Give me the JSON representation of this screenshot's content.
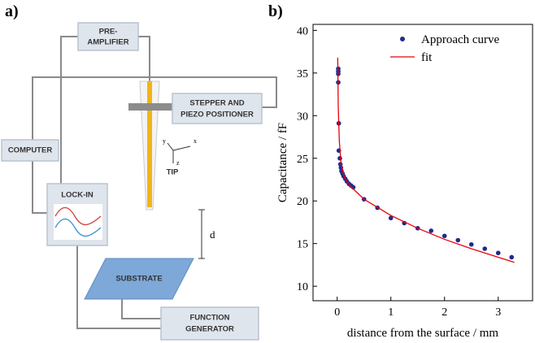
{
  "panel_a": {
    "label": "a)",
    "preamplifier": [
      "PRE-",
      "AMPLIFIER"
    ],
    "positioner": [
      "STEPPER AND",
      "PIEZO POSITIONER"
    ],
    "computer": "COMPUTER",
    "lockin": "LOCK-IN",
    "substrate": "SUBSTRATE",
    "generator": [
      "FUNCTION",
      "GENERATOR"
    ],
    "tip": "TIP",
    "distance": "d",
    "axes": [
      "x",
      "y",
      "z"
    ]
  },
  "panel_b": {
    "label": "b)"
  },
  "chart_data": {
    "type": "scatter",
    "x_label": "distance from the surface / mm",
    "y_label": "Capacitance / fF",
    "xlim": [
      -0.45,
      3.64
    ],
    "ylim": [
      8.3,
      40.7
    ],
    "xticks": [
      0,
      1,
      2,
      3
    ],
    "yticks": [
      10,
      15,
      20,
      25,
      30,
      35,
      40
    ],
    "legend": "upper right",
    "series": [
      {
        "name": "Approach curve",
        "type": "scatter",
        "color": "#1f2a8c",
        "x": [
          0.02,
          0.02,
          0.02,
          0.02,
          0.03,
          0.03,
          0.05,
          0.06,
          0.07,
          0.08,
          0.1,
          0.12,
          0.15,
          0.18,
          0.22,
          0.26,
          0.3,
          0.5,
          0.75,
          1.0,
          1.25,
          1.5,
          1.75,
          2.0,
          2.25,
          2.5,
          2.75,
          3.0,
          3.25
        ],
        "values": [
          35.5,
          35.2,
          34.9,
          33.9,
          29.1,
          25.9,
          25.0,
          24.3,
          23.9,
          23.5,
          23.2,
          22.9,
          22.6,
          22.3,
          22.0,
          21.8,
          21.6,
          20.2,
          19.2,
          18.0,
          17.4,
          16.8,
          16.5,
          15.9,
          15.4,
          14.9,
          14.4,
          13.9,
          13.4
        ]
      },
      {
        "name": "fit",
        "type": "line",
        "color": "#e8000b",
        "x": [
          0.01,
          0.02,
          0.04,
          0.07,
          0.1,
          0.15,
          0.2,
          0.3,
          0.5,
          1,
          1.5,
          2,
          2.5,
          3,
          3.3
        ],
        "values": [
          36.8,
          31,
          27,
          24.6,
          23.5,
          22.6,
          22.1,
          21.4,
          20.2,
          18.3,
          16.8,
          15.5,
          14.4,
          13.4,
          12.8
        ]
      }
    ]
  }
}
